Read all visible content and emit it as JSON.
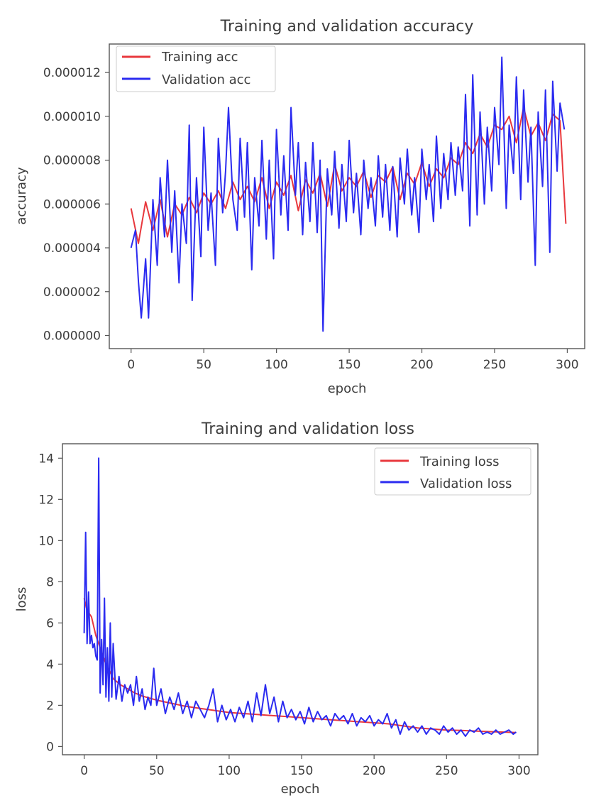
{
  "colors": {
    "training": "#e8383d",
    "validation": "#2b2bf0"
  },
  "chart_data": [
    {
      "type": "line",
      "title": "Training and validation accuracy",
      "xlabel": "epoch",
      "ylabel": "accuracy",
      "xlim": [
        -15,
        312
      ],
      "ylim": [
        -6e-07,
        1.33e-05
      ],
      "xticks": [
        0,
        50,
        100,
        150,
        200,
        250,
        300
      ],
      "xtick_labels": [
        "0",
        "50",
        "100",
        "150",
        "200",
        "250",
        "300"
      ],
      "yticks": [
        0,
        2e-06,
        4e-06,
        6e-06,
        8e-06,
        1e-05,
        1.2e-05
      ],
      "ytick_labels": [
        "0.000000",
        "0.000002",
        "0.000004",
        "0.000006",
        "0.000008",
        "0.000010",
        "0.000012"
      ],
      "legend_position": "top-left",
      "grid": false,
      "series": [
        {
          "name": "Training acc",
          "color": "#e8383d",
          "x": [
            0,
            5,
            10,
            15,
            20,
            25,
            30,
            35,
            40,
            45,
            50,
            55,
            60,
            65,
            70,
            75,
            80,
            85,
            90,
            95,
            100,
            105,
            110,
            115,
            120,
            125,
            130,
            135,
            140,
            145,
            150,
            155,
            160,
            165,
            170,
            175,
            180,
            185,
            190,
            195,
            200,
            205,
            210,
            215,
            220,
            225,
            230,
            235,
            240,
            245,
            250,
            255,
            260,
            265,
            270,
            275,
            280,
            285,
            290,
            295,
            299
          ],
          "values": [
            5.8e-06,
            4.2e-06,
            6.1e-06,
            4.8e-06,
            6.2e-06,
            4.5e-06,
            6e-06,
            5.5e-06,
            6.3e-06,
            5.6e-06,
            6.5e-06,
            6e-06,
            6.6e-06,
            5.8e-06,
            7e-06,
            6.2e-06,
            6.8e-06,
            6.1e-06,
            7.2e-06,
            5.8e-06,
            7e-06,
            6.4e-06,
            7.3e-06,
            5.7e-06,
            7.1e-06,
            6.5e-06,
            7.4e-06,
            5.9e-06,
            7.8e-06,
            6.6e-06,
            7.2e-06,
            6.8e-06,
            7.5e-06,
            6.3e-06,
            7.3e-06,
            7e-06,
            7.7e-06,
            6.2e-06,
            7.4e-06,
            6.9e-06,
            7.9e-06,
            6.8e-06,
            7.6e-06,
            7.2e-06,
            8.1e-06,
            7.8e-06,
            8.8e-06,
            8.3e-06,
            9.2e-06,
            8.6e-06,
            9.6e-06,
            9.4e-06,
            1e-05,
            8.8e-06,
            1.04e-05,
            9.1e-06,
            9.7e-06,
            8.9e-06,
            1.01e-05,
            9.8e-06,
            5.1e-06
          ]
        },
        {
          "name": "Validation acc",
          "color": "#2b2bf0",
          "x": [
            0,
            3,
            5,
            7,
            10,
            12,
            15,
            18,
            20,
            23,
            25,
            28,
            30,
            33,
            35,
            38,
            40,
            42,
            45,
            48,
            50,
            53,
            55,
            58,
            60,
            63,
            65,
            67,
            70,
            73,
            75,
            78,
            80,
            83,
            85,
            88,
            90,
            93,
            95,
            98,
            100,
            103,
            105,
            108,
            110,
            113,
            115,
            118,
            120,
            123,
            125,
            128,
            130,
            132,
            135,
            138,
            140,
            143,
            145,
            148,
            150,
            153,
            155,
            158,
            160,
            163,
            165,
            168,
            170,
            173,
            175,
            178,
            180,
            183,
            185,
            188,
            190,
            193,
            195,
            198,
            200,
            203,
            205,
            208,
            210,
            213,
            215,
            218,
            220,
            223,
            225,
            228,
            230,
            233,
            235,
            238,
            240,
            243,
            245,
            248,
            250,
            253,
            255,
            258,
            260,
            263,
            265,
            268,
            270,
            273,
            275,
            278,
            280,
            283,
            285,
            288,
            290,
            293,
            295,
            298
          ],
          "values": [
            4e-06,
            4.8e-06,
            2.5e-06,
            8e-07,
            3.5e-06,
            8e-07,
            6.2e-06,
            3.2e-06,
            7.2e-06,
            4.5e-06,
            8e-06,
            3.8e-06,
            6.6e-06,
            2.4e-06,
            6e-06,
            4.2e-06,
            9.6e-06,
            1.6e-06,
            7.2e-06,
            3.6e-06,
            9.5e-06,
            4.8e-06,
            6.5e-06,
            3.2e-06,
            9e-06,
            5.6e-06,
            7.5e-06,
            1.04e-05,
            6.2e-06,
            4.8e-06,
            9e-06,
            5.4e-06,
            8.8e-06,
            3e-06,
            7.2e-06,
            5e-06,
            8.9e-06,
            4.4e-06,
            8e-06,
            3.5e-06,
            9.4e-06,
            5.5e-06,
            8.2e-06,
            4.8e-06,
            1.04e-05,
            6.4e-06,
            8.8e-06,
            4.6e-06,
            7.9e-06,
            5.2e-06,
            8.8e-06,
            4.7e-06,
            8e-06,
            2e-07,
            7.6e-06,
            5.5e-06,
            8.4e-06,
            4.9e-06,
            7.8e-06,
            5.2e-06,
            8.9e-06,
            5.6e-06,
            7.4e-06,
            4.6e-06,
            8e-06,
            5.8e-06,
            7.2e-06,
            5e-06,
            8.2e-06,
            5.4e-06,
            7.8e-06,
            4.8e-06,
            7.7e-06,
            4.5e-06,
            8.1e-06,
            6e-06,
            8.5e-06,
            5.5e-06,
            7.2e-06,
            4.7e-06,
            8.5e-06,
            6.2e-06,
            7.8e-06,
            5.2e-06,
            9.1e-06,
            5.8e-06,
            8.3e-06,
            6.2e-06,
            8.8e-06,
            6.4e-06,
            8.6e-06,
            6.6e-06,
            1.1e-05,
            5e-06,
            1.19e-05,
            5.5e-06,
            1.02e-05,
            6e-06,
            9.5e-06,
            6.6e-06,
            1.04e-05,
            7.8e-06,
            1.27e-05,
            5.8e-06,
            9.6e-06,
            7.4e-06,
            1.18e-05,
            6.2e-06,
            1.12e-05,
            7e-06,
            9.5e-06,
            3.2e-06,
            1.02e-05,
            6.8e-06,
            1.12e-05,
            3.8e-06,
            1.16e-05,
            7.5e-06,
            1.06e-05,
            9.4e-06
          ]
        }
      ]
    },
    {
      "type": "line",
      "title": "Training and validation loss",
      "xlabel": "epoch",
      "ylabel": "loss",
      "xlim": [
        -15,
        313
      ],
      "ylim": [
        -0.4,
        14.7
      ],
      "xticks": [
        0,
        50,
        100,
        150,
        200,
        250,
        300
      ],
      "xtick_labels": [
        "0",
        "50",
        "100",
        "150",
        "200",
        "250",
        "300"
      ],
      "yticks": [
        0,
        2,
        4,
        6,
        8,
        10,
        12,
        14
      ],
      "ytick_labels": [
        "0",
        "2",
        "4",
        "6",
        "8",
        "10",
        "12",
        "14"
      ],
      "legend_position": "top-right",
      "grid": false,
      "series": [
        {
          "name": "Training loss",
          "color": "#e8383d",
          "x": [
            0,
            2,
            5,
            8,
            10,
            13,
            15,
            18,
            20,
            25,
            30,
            35,
            40,
            45,
            50,
            60,
            70,
            80,
            90,
            100,
            110,
            120,
            130,
            140,
            150,
            160,
            170,
            180,
            190,
            200,
            210,
            220,
            230,
            240,
            250,
            260,
            270,
            280,
            290,
            298
          ],
          "values": [
            7.2,
            6.6,
            6.3,
            5.4,
            5.0,
            4.4,
            4.0,
            3.6,
            3.3,
            3.0,
            2.8,
            2.6,
            2.45,
            2.35,
            2.25,
            2.1,
            1.95,
            1.85,
            1.75,
            1.65,
            1.6,
            1.55,
            1.5,
            1.45,
            1.4,
            1.35,
            1.3,
            1.25,
            1.2,
            1.15,
            1.1,
            1.0,
            0.9,
            0.85,
            0.8,
            0.78,
            0.75,
            0.72,
            0.7,
            0.68
          ]
        },
        {
          "name": "Validation loss",
          "color": "#2b2bf0",
          "x": [
            0,
            1,
            2,
            3,
            4,
            5,
            6,
            7,
            8,
            9,
            10,
            11,
            12,
            13,
            14,
            15,
            16,
            17,
            18,
            19,
            20,
            22,
            24,
            26,
            28,
            30,
            32,
            34,
            36,
            38,
            40,
            42,
            44,
            46,
            48,
            50,
            53,
            56,
            59,
            62,
            65,
            68,
            71,
            74,
            77,
            80,
            83,
            86,
            89,
            92,
            95,
            98,
            101,
            104,
            107,
            110,
            113,
            116,
            119,
            122,
            125,
            128,
            131,
            134,
            137,
            140,
            143,
            146,
            149,
            152,
            155,
            158,
            161,
            164,
            167,
            170,
            173,
            176,
            179,
            182,
            185,
            188,
            191,
            194,
            197,
            200,
            203,
            206,
            209,
            212,
            215,
            218,
            221,
            224,
            227,
            230,
            233,
            236,
            239,
            242,
            245,
            248,
            251,
            254,
            257,
            260,
            263,
            266,
            269,
            272,
            275,
            278,
            281,
            284,
            287,
            290,
            293,
            296,
            298
          ],
          "values": [
            5.5,
            10.4,
            5.0,
            7.5,
            5.0,
            5.4,
            4.8,
            5.0,
            4.4,
            4.2,
            14.0,
            2.6,
            5.2,
            3.0,
            7.2,
            2.4,
            4.8,
            2.2,
            6.0,
            2.4,
            5.0,
            2.3,
            3.4,
            2.2,
            3.0,
            2.6,
            3.0,
            2.0,
            3.4,
            2.2,
            2.8,
            1.8,
            2.4,
            2.0,
            3.8,
            2.0,
            2.8,
            1.6,
            2.4,
            1.8,
            2.6,
            1.6,
            2.2,
            1.4,
            2.2,
            1.8,
            1.4,
            2.0,
            2.8,
            1.2,
            2.0,
            1.3,
            1.8,
            1.2,
            1.9,
            1.4,
            2.2,
            1.2,
            2.6,
            1.5,
            3.0,
            1.6,
            2.4,
            1.2,
            2.2,
            1.4,
            1.8,
            1.3,
            1.7,
            1.1,
            1.9,
            1.2,
            1.7,
            1.3,
            1.5,
            1.0,
            1.6,
            1.3,
            1.5,
            1.1,
            1.6,
            1.0,
            1.4,
            1.2,
            1.5,
            1.0,
            1.3,
            1.1,
            1.6,
            0.9,
            1.3,
            0.6,
            1.2,
            0.8,
            1.0,
            0.7,
            1.0,
            0.6,
            0.9,
            0.8,
            0.6,
            1.0,
            0.7,
            0.9,
            0.6,
            0.8,
            0.5,
            0.8,
            0.7,
            0.9,
            0.6,
            0.7,
            0.6,
            0.8,
            0.6,
            0.7,
            0.8,
            0.6,
            0.7
          ]
        }
      ]
    }
  ]
}
